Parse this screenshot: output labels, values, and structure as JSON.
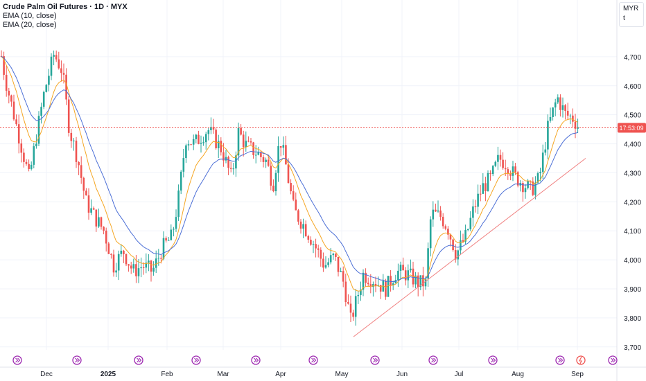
{
  "legend": {
    "title": "Crude Palm Oil Futures · 1D · MYX",
    "ema10": "EMA (10, close)",
    "ema20": "EMA (20, close)"
  },
  "currency": {
    "code": "MYR",
    "unit": "t"
  },
  "price_tag": "17:53:09",
  "chart_data": {
    "type": "candlestick",
    "title": "Crude Palm Oil Futures · 1D · MYX",
    "x_labels": [
      "Dec",
      "2025",
      "Feb",
      "Mar",
      "Apr",
      "May",
      "Jun",
      "Jul",
      "Aug",
      "Sep"
    ],
    "y_ticks": [
      3700,
      3800,
      3900,
      4000,
      4100,
      4200,
      4300,
      4400,
      4500,
      4600,
      4700
    ],
    "y_tick_labels": [
      "3,700",
      "3,800",
      "3,900",
      "4,000",
      "4,100",
      "4,200",
      "4,300",
      "4,400",
      "4,500",
      "4,600",
      "4,700"
    ],
    "ylim": [
      3690,
      4800
    ],
    "last_price": 4455,
    "series": [
      {
        "name": "EMA (10, close)",
        "color": "#f5a623"
      },
      {
        "name": "EMA (20, close)",
        "color": "#4c6fd6"
      }
    ],
    "trendline": {
      "from": [
        "May",
        3735
      ],
      "to": [
        "Sep",
        4350
      ],
      "color": "#f08080"
    },
    "colors": {
      "up": "#26a69a",
      "down": "#ef5350",
      "last_price": "#ef5350"
    },
    "event_markers": 11,
    "grid": true
  }
}
